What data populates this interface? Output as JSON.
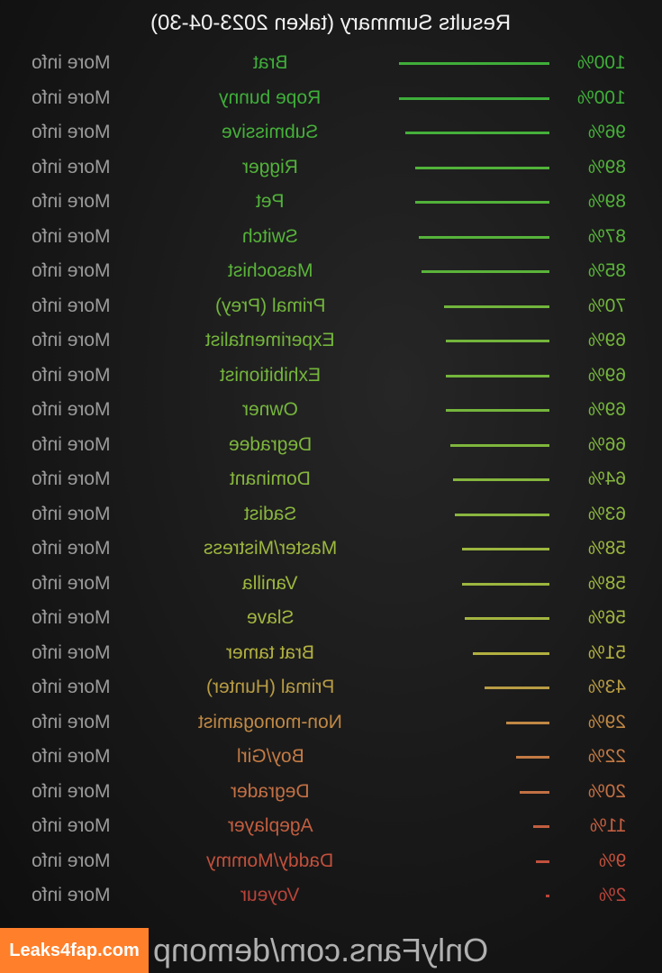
{
  "title": "Results Summary (taken 2023-04-30)",
  "more_info_label": "More info",
  "results": [
    {
      "name": "Brat",
      "percent": "100%",
      "value": 100,
      "color": "#3fae3a"
    },
    {
      "name": "Rope bunny",
      "percent": "100%",
      "value": 100,
      "color": "#3fae3a"
    },
    {
      "name": "Submissive",
      "percent": "96%",
      "value": 96,
      "color": "#45b03a"
    },
    {
      "name": "Rigger",
      "percent": "89%",
      "value": 89,
      "color": "#52b23a"
    },
    {
      "name": "Pet",
      "percent": "89%",
      "value": 89,
      "color": "#52b23a"
    },
    {
      "name": "Switch",
      "percent": "87%",
      "value": 87,
      "color": "#56b33a"
    },
    {
      "name": "Masochist",
      "percent": "85%",
      "value": 85,
      "color": "#5ab43a"
    },
    {
      "name": "Primal (Prey)",
      "percent": "70%",
      "value": 70,
      "color": "#72b53c"
    },
    {
      "name": "Experimentalist",
      "percent": "69%",
      "value": 69,
      "color": "#74b53c"
    },
    {
      "name": "Exhibitionist",
      "percent": "69%",
      "value": 69,
      "color": "#74b53c"
    },
    {
      "name": "Owner",
      "percent": "69%",
      "value": 69,
      "color": "#74b53c"
    },
    {
      "name": "Degradee",
      "percent": "66%",
      "value": 66,
      "color": "#7eb63c"
    },
    {
      "name": "Dominant",
      "percent": "64%",
      "value": 64,
      "color": "#86b63e"
    },
    {
      "name": "Sadist",
      "percent": "63%",
      "value": 63,
      "color": "#8ab63e"
    },
    {
      "name": "Master/Mistress",
      "percent": "58%",
      "value": 58,
      "color": "#9cb63e"
    },
    {
      "name": "Vanilla",
      "percent": "58%",
      "value": 58,
      "color": "#9cb63e"
    },
    {
      "name": "Slave",
      "percent": "56%",
      "value": 56,
      "color": "#a4b540"
    },
    {
      "name": "Brat tamer",
      "percent": "51%",
      "value": 51,
      "color": "#b2b040"
    },
    {
      "name": "Primal (Hunter)",
      "percent": "43%",
      "value": 43,
      "color": "#b89c44"
    },
    {
      "name": "Non-monogamist",
      "percent": "29%",
      "value": 29,
      "color": "#c08844"
    },
    {
      "name": "Boy/Girl",
      "percent": "22%",
      "value": 22,
      "color": "#c27a44"
    },
    {
      "name": "Degrader",
      "percent": "20%",
      "value": 20,
      "color": "#c27044"
    },
    {
      "name": "Ageplayer",
      "percent": "11%",
      "value": 11,
      "color": "#c25e40"
    },
    {
      "name": "Daddy/Mommy",
      "percent": "9%",
      "value": 9,
      "color": "#c0503c"
    },
    {
      "name": "Voyeur",
      "percent": "2%",
      "value": 2,
      "color": "#b8443a"
    }
  ],
  "watermark": "Leaks4fap.com",
  "overlay_text": "OnlyFans.com/demonp"
}
